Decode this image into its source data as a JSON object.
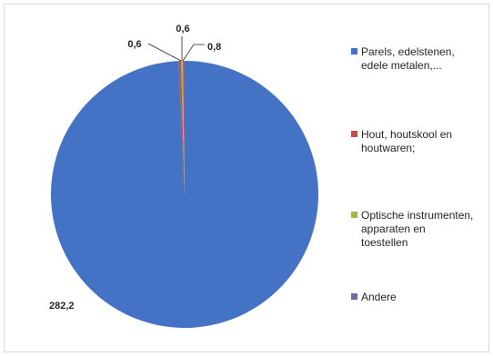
{
  "chart_data": {
    "type": "pie",
    "title": "",
    "categories": [
      "Parels, edelstenen, edele metalen,...",
      "Hout, houtskool en houtwaren;",
      "Optische instrumenten, apparaten en toestellen",
      "Andere"
    ],
    "values": [
      282.2,
      0.8,
      0.6,
      0.6
    ],
    "data_labels": [
      "282,2",
      "0,8",
      "0,6",
      "0,6"
    ],
    "colors": [
      "#4472C4",
      "#C0504D",
      "#9BBB59",
      "#8064A2"
    ],
    "start_angle_deg": 0,
    "direction": "clockwise",
    "legend_position": "right",
    "legend_lines": [
      [
        "Parels, edelstenen,",
        "edele metalen,..."
      ],
      [
        "Hout, houtskool en",
        "houtwaren;"
      ],
      [
        "Optische instrumenten,",
        "apparaten en",
        "toestellen"
      ],
      [
        "Andere"
      ]
    ]
  }
}
